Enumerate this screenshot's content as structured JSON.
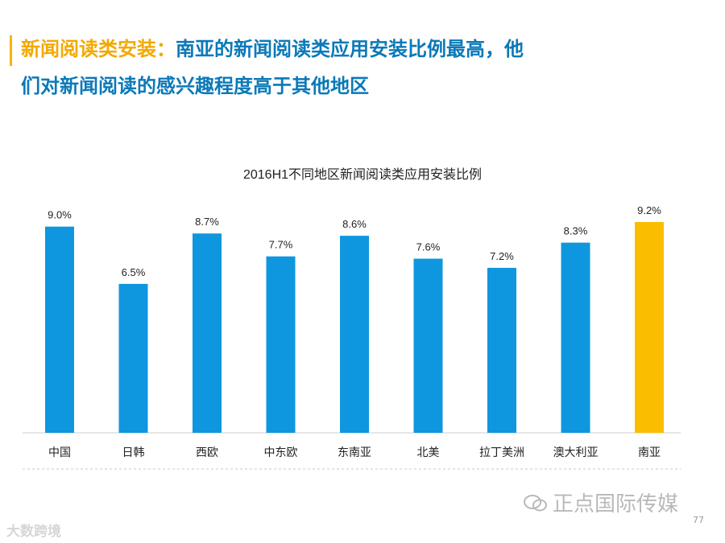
{
  "header": {
    "highlight": "新闻阅读类安装",
    "separator": "：",
    "text": "南亚的新闻阅读类应用安装比例最高，他们对新闻阅读的感兴趣程度高于其他地区"
  },
  "chart_data": {
    "type": "bar",
    "title": "2016H1不同地区新闻阅读类应用安装比例",
    "categories": [
      "中国",
      "日韩",
      "西欧",
      "中东欧",
      "东南亚",
      "北美",
      "拉丁美洲",
      "澳大利亚",
      "南亚"
    ],
    "values": [
      9.0,
      6.5,
      8.7,
      7.7,
      8.6,
      7.6,
      7.2,
      8.3,
      9.2
    ],
    "value_labels": [
      "9.0%",
      "6.5%",
      "8.7%",
      "7.7%",
      "8.6%",
      "7.6%",
      "7.2%",
      "8.3%",
      "9.2%"
    ],
    "unit": "%",
    "ylim": [
      0,
      9.2
    ],
    "grid": false,
    "legend": "none",
    "colors": [
      "#0e97df",
      "#0e97df",
      "#0e97df",
      "#0e97df",
      "#0e97df",
      "#0e97df",
      "#0e97df",
      "#0e97df",
      "#fbbd00"
    ]
  },
  "footer": {
    "watermark": "正点国际传媒",
    "page_number": "77",
    "logo": "大数跨境"
  },
  "colors": {
    "accent_blue": "#0b79b8",
    "accent_yellow": "#f2a900",
    "bar_blue": "#0e97df",
    "bar_yellow": "#fbbd00"
  }
}
